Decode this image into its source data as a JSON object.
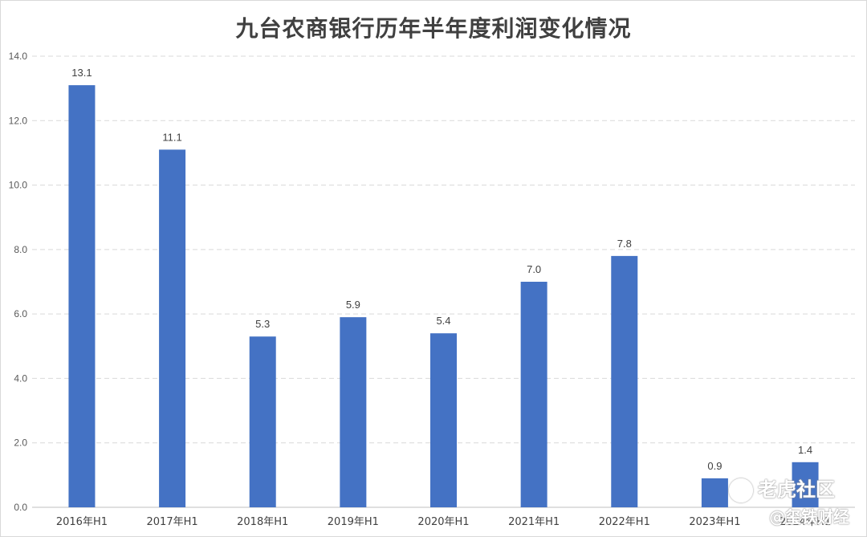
{
  "title": "九台农商银行历年半年度利润变化情况",
  "chart_data": {
    "type": "bar",
    "title": "九台农商银行历年半年度利润变化情况",
    "categories": [
      "2016年H1",
      "2017年H1",
      "2018年H1",
      "2019年H1",
      "2020年H1",
      "2021年H1",
      "2022年H1",
      "2023年H1",
      "2024年H1"
    ],
    "values": [
      13.1,
      11.1,
      5.3,
      5.9,
      5.4,
      7.0,
      7.8,
      0.9,
      1.4
    ],
    "data_labels": [
      "13.1",
      "11.1",
      "5.3",
      "5.9",
      "5.4",
      "7.0",
      "7.8",
      "0.9",
      "1.4"
    ],
    "yticks": [
      "0.0",
      "2.0",
      "4.0",
      "6.0",
      "8.0",
      "10.0",
      "12.0",
      "14.0"
    ],
    "ylim": [
      0,
      14
    ],
    "xlabel": "",
    "ylabel": "",
    "grid": "horizontal dashed",
    "bar_color": "#4472c4"
  },
  "watermarks": {
    "line1": "老虎社区",
    "line2": "@玺铁财经"
  }
}
